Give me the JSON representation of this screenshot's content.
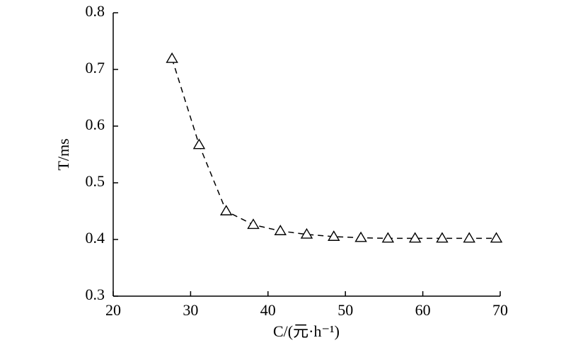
{
  "chart_data": {
    "type": "line",
    "xlabel": "C/(元·h⁻¹)",
    "ylabel": "T/ms",
    "x": [
      27.6,
      31.1,
      34.6,
      38.1,
      41.6,
      45.0,
      48.5,
      52.0,
      55.5,
      59.0,
      62.5,
      66.0,
      69.5
    ],
    "y": [
      0.719,
      0.567,
      0.45,
      0.426,
      0.415,
      0.409,
      0.405,
      0.403,
      0.402,
      0.402,
      0.402,
      0.402,
      0.402
    ],
    "color": "#000000",
    "xlim": [
      20,
      70
    ],
    "xticks": [
      20,
      30,
      40,
      50,
      60,
      70
    ],
    "ylim": [
      0.3,
      0.8
    ],
    "yticks": [
      0.3,
      0.4,
      0.5,
      0.6,
      0.7,
      0.8
    ]
  }
}
